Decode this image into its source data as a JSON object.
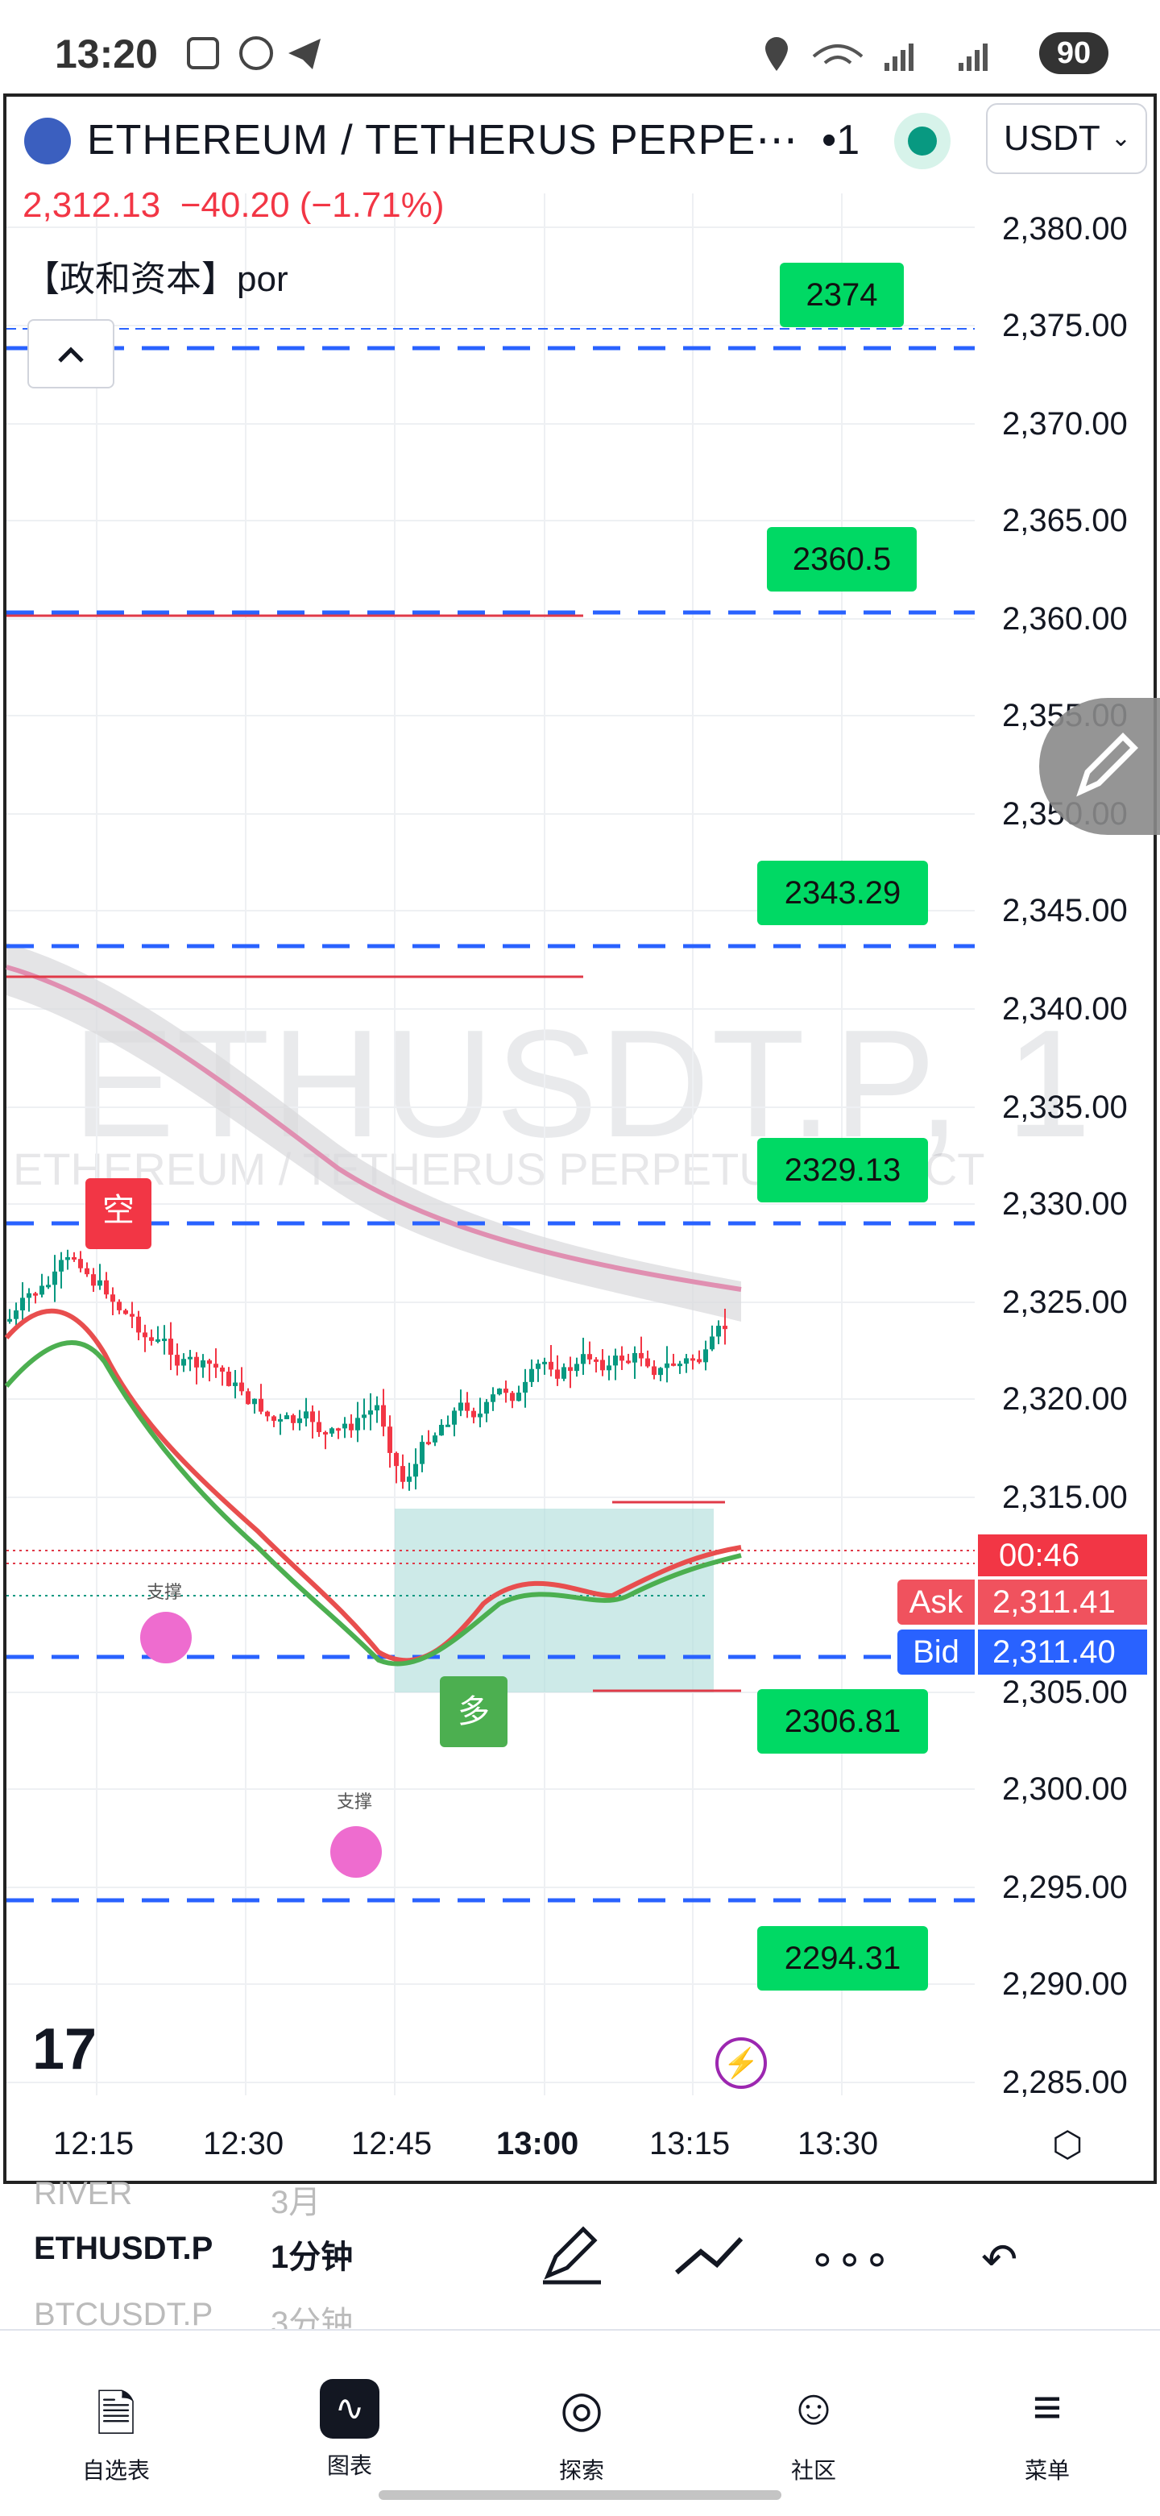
{
  "status_bar": {
    "time": "13:20",
    "battery": "90",
    "icons": [
      "screenshot-icon",
      "whatsapp-icon",
      "telegram-icon",
      "location-icon",
      "wifi-icon",
      "signal-icon",
      "signal-icon"
    ]
  },
  "header": {
    "symbol_title": "ETHEREUM / TETHERUS PERPE⋯",
    "interval": "•1",
    "currency": "USDT",
    "price": "2,312.13",
    "change": "−40.20 (−1.71%)",
    "indicator": "【政和资本】por"
  },
  "chart": {
    "watermark": "ETHUSDT.P, 1",
    "watermark_sub": "ETHEREUM / TETHERUS PERPETUAL C●●CT",
    "price_ticks": [
      "2,380.00",
      "2,375.00",
      "2,370.00",
      "2,365.00",
      "2,360.00",
      "2,355.00",
      "2,350.00",
      "2,345.00",
      "2,340.00",
      "2,335.00",
      "2,330.00",
      "2,325.00",
      "2,320.00",
      "2,315.00",
      "2,305.00",
      "2,300.00",
      "2,295.00",
      "2,290.00",
      "2,285.00"
    ],
    "time_ticks": [
      "12:15",
      "12:30",
      "12:45",
      "13:00",
      "13:15",
      "13:30"
    ],
    "level_labels": [
      "2374",
      "2360.5",
      "2343.29",
      "2329.13",
      "2306.81",
      "2294.31"
    ],
    "countdown": "00:46",
    "ask_label": "Ask",
    "ask_value": "2,311.41",
    "bid_label": "Bid",
    "bid_value": "2,311.40",
    "signal_short": "空",
    "signal_long": "多",
    "support_label_1": "支撑",
    "support_label_2": "支撑",
    "colors": {
      "up": "#089981",
      "down": "#f23645",
      "level_line": "#2962ff",
      "label_bg": "#00d964",
      "zone": "#b2dfdb"
    }
  },
  "toolbar": {
    "symbols": [
      "RIVER",
      "ETHUSDT.P",
      "BTCUSDT.P"
    ],
    "intervals": [
      "3月",
      "1分钟",
      "3分钟"
    ]
  },
  "nav": [
    {
      "label": "自选表",
      "icon": "watchlist-icon"
    },
    {
      "label": "图表",
      "icon": "chart-icon"
    },
    {
      "label": "探索",
      "icon": "compass-icon"
    },
    {
      "label": "社区",
      "icon": "community-icon"
    },
    {
      "label": "菜单",
      "icon": "menu-icon"
    }
  ]
}
